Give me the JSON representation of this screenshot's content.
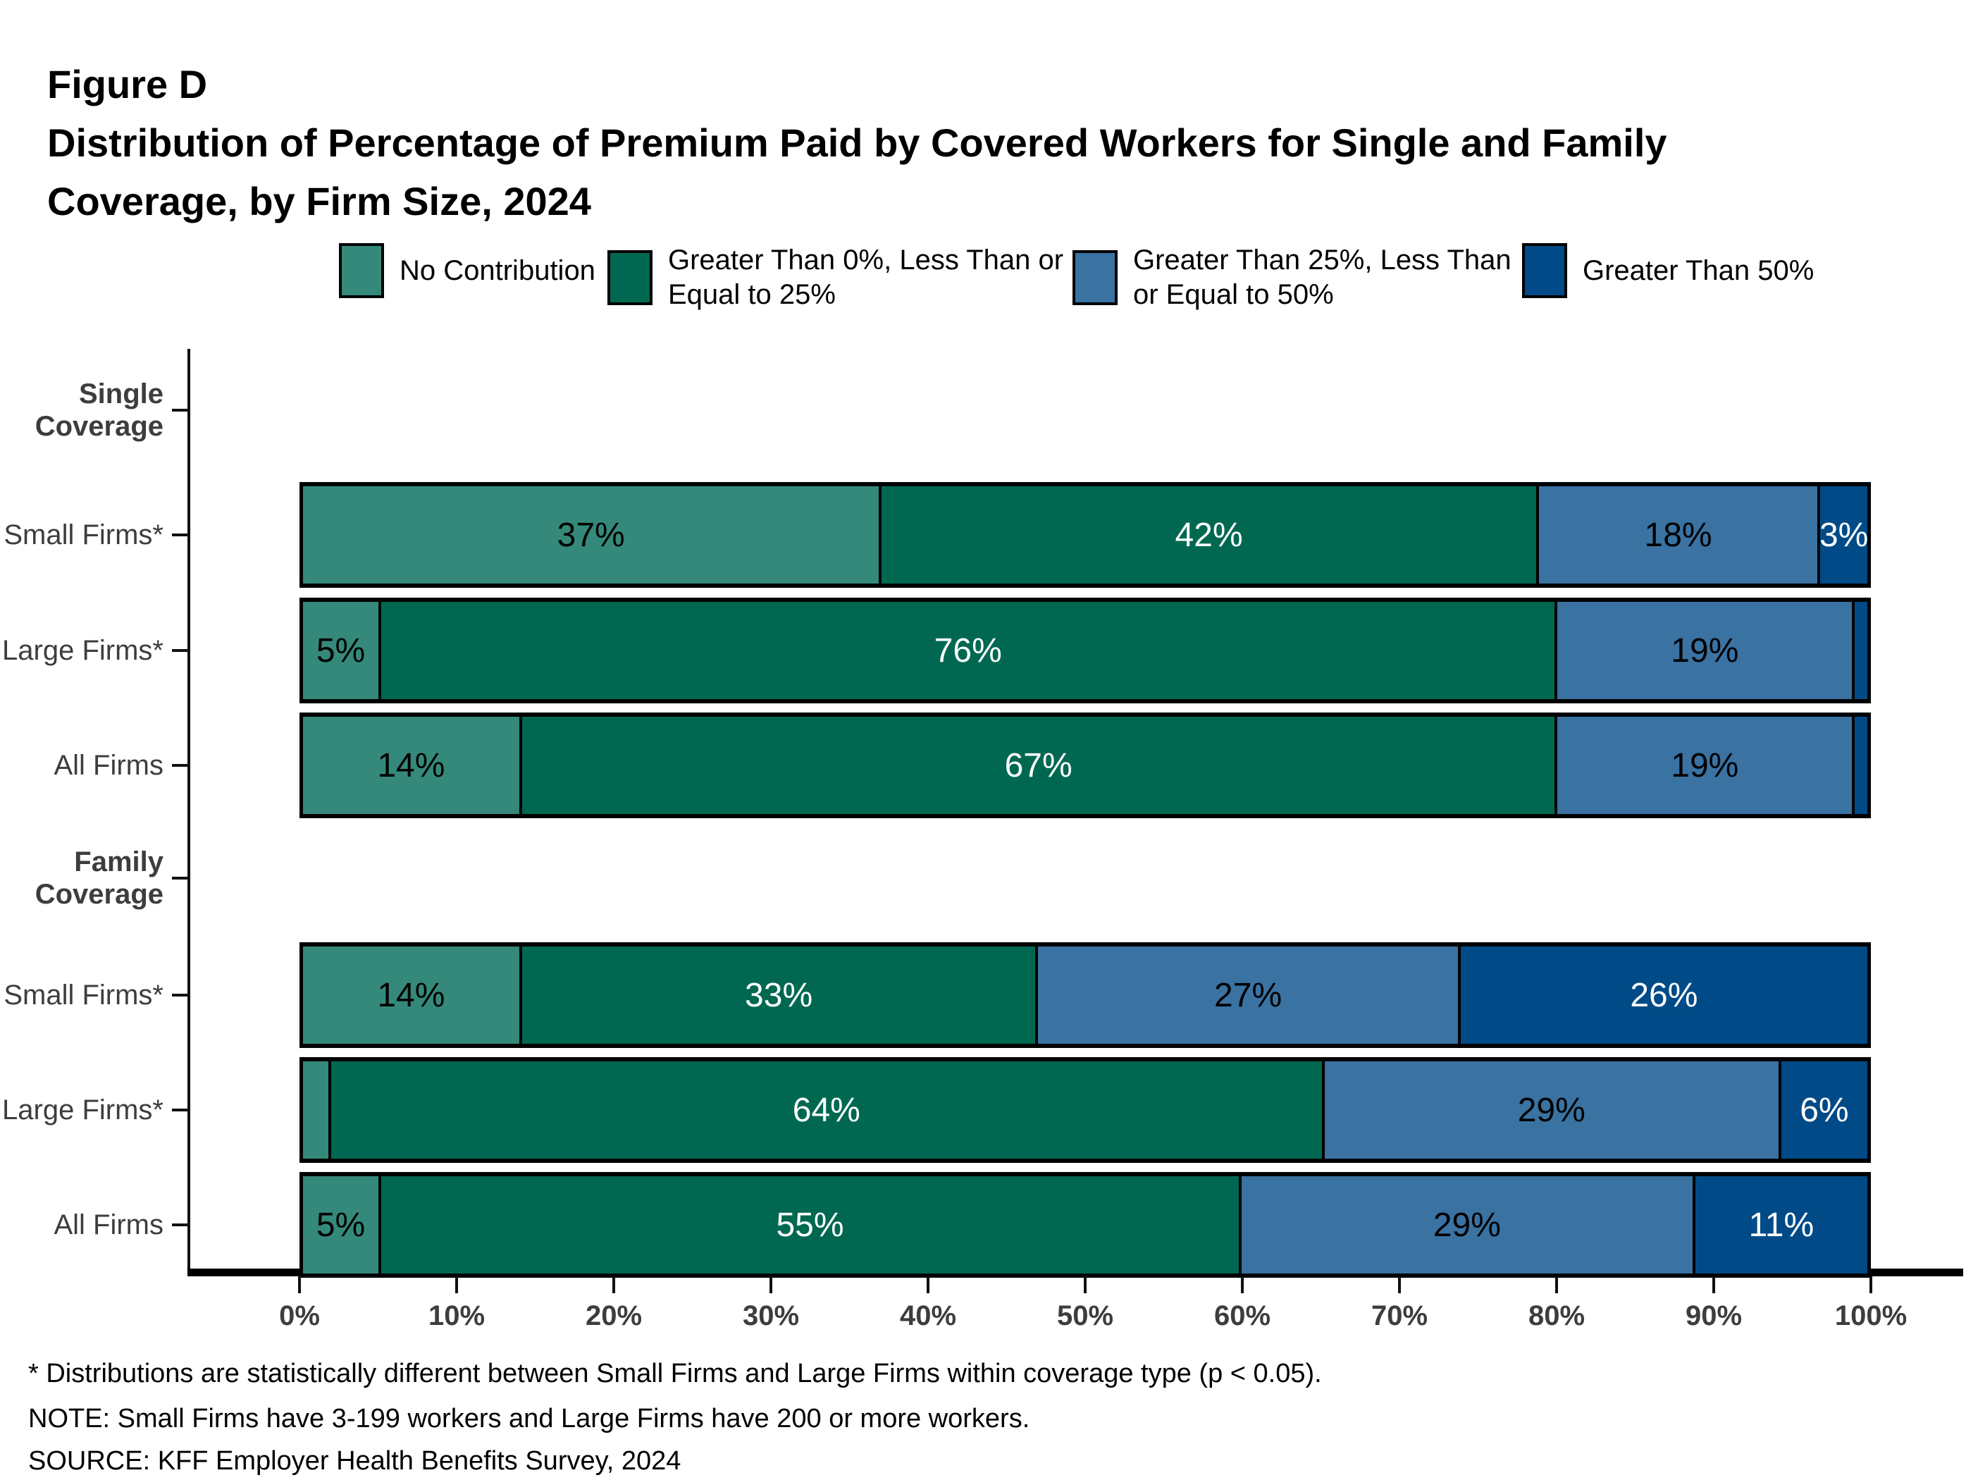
{
  "figure_label": "Figure D",
  "title": "Distribution of Percentage of Premium Paid by Covered Workers for Single and Family Coverage, by Firm Size, 2024",
  "title_lines": [
    "Distribution of Percentage of Premium Paid by Covered Workers for Single and Family",
    "Coverage, by Firm Size, 2024"
  ],
  "legend": [
    {
      "label": "No Contribution",
      "color": "#35897A",
      "text_color": "#000000"
    },
    {
      "label": "Greater Than 0%, Less Than or Equal to 25%",
      "color": "#006851",
      "text_color": "#FFFFFF"
    },
    {
      "label": "Greater Than 25%, Less Than or Equal to 50%",
      "color": "#3A72A2",
      "text_color": "#000000"
    },
    {
      "label": "Greater Than 50%",
      "color": "#004B87",
      "text_color": "#FFFFFF"
    }
  ],
  "chart_data": {
    "type": "bar",
    "orientation": "horizontal",
    "stacked": true,
    "unit": "percent of covered workers",
    "x_axis": {
      "ticks": [
        "0%",
        "10%",
        "20%",
        "30%",
        "40%",
        "50%",
        "60%",
        "70%",
        "80%",
        "90%",
        "100%"
      ],
      "range": [
        0,
        100
      ],
      "grid": false
    },
    "series_names": [
      "No Contribution",
      "Greater Than 0%, Less Than or Equal to 25%",
      "Greater Than 25%, Less Than or Equal to 50%",
      "Greater Than 50%"
    ],
    "groups": [
      {
        "label": "Single Coverage",
        "rows": [
          {
            "label": "Small Firms*",
            "segments": [
              {
                "display": "37%",
                "width": 37
              },
              {
                "display": "42%",
                "width": 42
              },
              {
                "display": "18%",
                "width": 18
              },
              {
                "display": "3%",
                "width": 3
              }
            ]
          },
          {
            "label": "Large Firms*",
            "segments": [
              {
                "display": "5%",
                "width": 5
              },
              {
                "display": "76%",
                "width": 75.2
              },
              {
                "display": "19%",
                "width": 19
              },
              {
                "display": "",
                "width": 0.8
              }
            ]
          },
          {
            "label": "All Firms",
            "segments": [
              {
                "display": "14%",
                "width": 14
              },
              {
                "display": "67%",
                "width": 66.2
              },
              {
                "display": "19%",
                "width": 19
              },
              {
                "display": "",
                "width": 0.8
              }
            ]
          }
        ]
      },
      {
        "label": "Family Coverage",
        "rows": [
          {
            "label": "Small Firms*",
            "segments": [
              {
                "display": "14%",
                "width": 14
              },
              {
                "display": "33%",
                "width": 33
              },
              {
                "display": "27%",
                "width": 27
              },
              {
                "display": "26%",
                "width": 26
              }
            ]
          },
          {
            "label": "Large Firms*",
            "segments": [
              {
                "display": "",
                "width": 1.8
              },
              {
                "display": "64%",
                "width": 63.5
              },
              {
                "display": "29%",
                "width": 29.2
              },
              {
                "display": "6%",
                "width": 5.5
              }
            ]
          },
          {
            "label": "All Firms",
            "segments": [
              {
                "display": "5%",
                "width": 5
              },
              {
                "display": "55%",
                "width": 55
              },
              {
                "display": "29%",
                "width": 29
              },
              {
                "display": "11%",
                "width": 11
              }
            ]
          }
        ]
      }
    ]
  },
  "footnotes": [
    "* Distributions are statistically different between Small Firms and Large Firms within coverage type (p < 0.05).",
    "NOTE: Small Firms have 3-199 workers and Large Firms have 200 or more workers.",
    "SOURCE: KFF Employer Health Benefits Survey, 2024"
  ]
}
